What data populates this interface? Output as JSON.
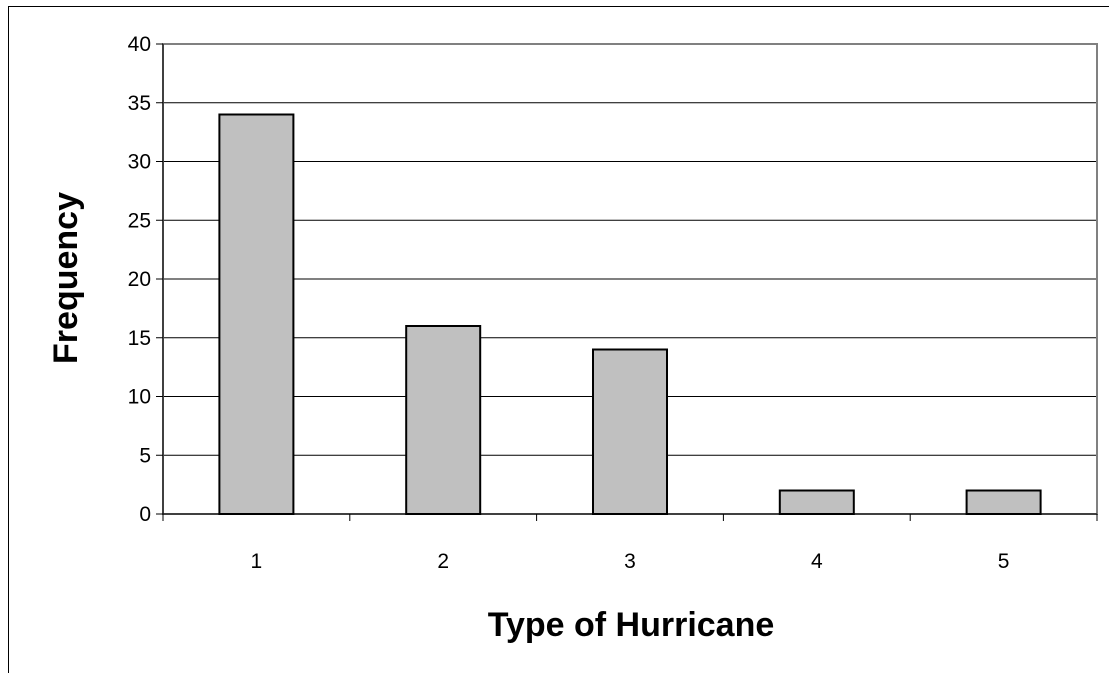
{
  "chart_data": {
    "type": "bar",
    "categories": [
      "1",
      "2",
      "3",
      "4",
      "5"
    ],
    "values": [
      34,
      16,
      14,
      2,
      2
    ],
    "title": "",
    "xlabel": "Type of Hurricane",
    "ylabel": "Frequency",
    "ylim": [
      0,
      40
    ],
    "yticks": [
      "0",
      "5",
      "10",
      "15",
      "20",
      "25",
      "30",
      "35",
      "40"
    ],
    "grid": true,
    "legend": "none",
    "colors": {
      "bar_fill": "#c0c0c0",
      "bar_stroke": "#000000",
      "gridline": "#000000",
      "plot_border": "#808080"
    }
  }
}
